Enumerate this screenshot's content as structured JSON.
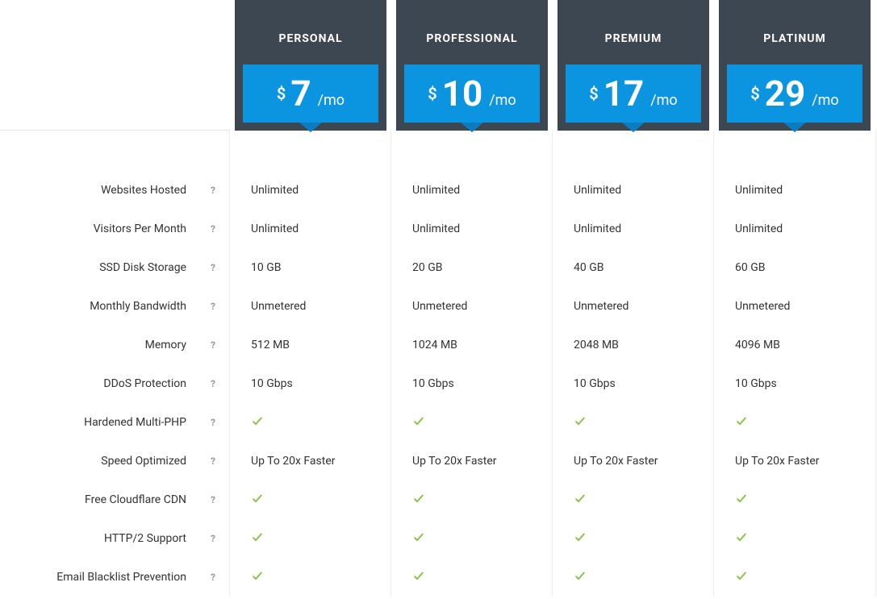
{
  "colors": {
    "header_bg": "#3c4752",
    "price_bg": "#0b94e0",
    "price_arrow": "#0b7cc0",
    "check": "#8bc34a",
    "help": "#9a9a9a",
    "text": "#333333",
    "border": "#ececec",
    "page_bg": "#ffffff"
  },
  "currency_symbol": "$",
  "per_text": "/mo",
  "help_glyph": "?",
  "plans": [
    {
      "name": "PERSONAL",
      "price": "7"
    },
    {
      "name": "PROFESSIONAL",
      "price": "10"
    },
    {
      "name": "PREMIUM",
      "price": "17"
    },
    {
      "name": "PLATINUM",
      "price": "29"
    }
  ],
  "features": [
    {
      "label": "Websites Hosted",
      "values": [
        "Unlimited",
        "Unlimited",
        "Unlimited",
        "Unlimited"
      ]
    },
    {
      "label": "Visitors Per Month",
      "values": [
        "Unlimited",
        "Unlimited",
        "Unlimited",
        "Unlimited"
      ]
    },
    {
      "label": "SSD Disk Storage",
      "values": [
        "10 GB",
        "20 GB",
        "40 GB",
        "60 GB"
      ]
    },
    {
      "label": "Monthly Bandwidth",
      "values": [
        "Unmetered",
        "Unmetered",
        "Unmetered",
        "Unmetered"
      ]
    },
    {
      "label": "Memory",
      "values": [
        "512 MB",
        "1024 MB",
        "2048 MB",
        "4096 MB"
      ]
    },
    {
      "label": "DDoS Protection",
      "values": [
        "10 Gbps",
        "10 Gbps",
        "10 Gbps",
        "10 Gbps"
      ]
    },
    {
      "label": "Hardened Multi-PHP",
      "values": [
        "check",
        "check",
        "check",
        "check"
      ]
    },
    {
      "label": "Speed Optimized",
      "values": [
        "Up To 20x Faster",
        "Up To 20x Faster",
        "Up To 20x Faster",
        "Up To 20x Faster"
      ]
    },
    {
      "label": "Free Cloudflare CDN",
      "values": [
        "check",
        "check",
        "check",
        "check"
      ]
    },
    {
      "label": "HTTP/2 Support",
      "values": [
        "check",
        "check",
        "check",
        "check"
      ]
    },
    {
      "label": "Email Blacklist Prevention",
      "values": [
        "check",
        "check",
        "check",
        "check"
      ]
    }
  ]
}
